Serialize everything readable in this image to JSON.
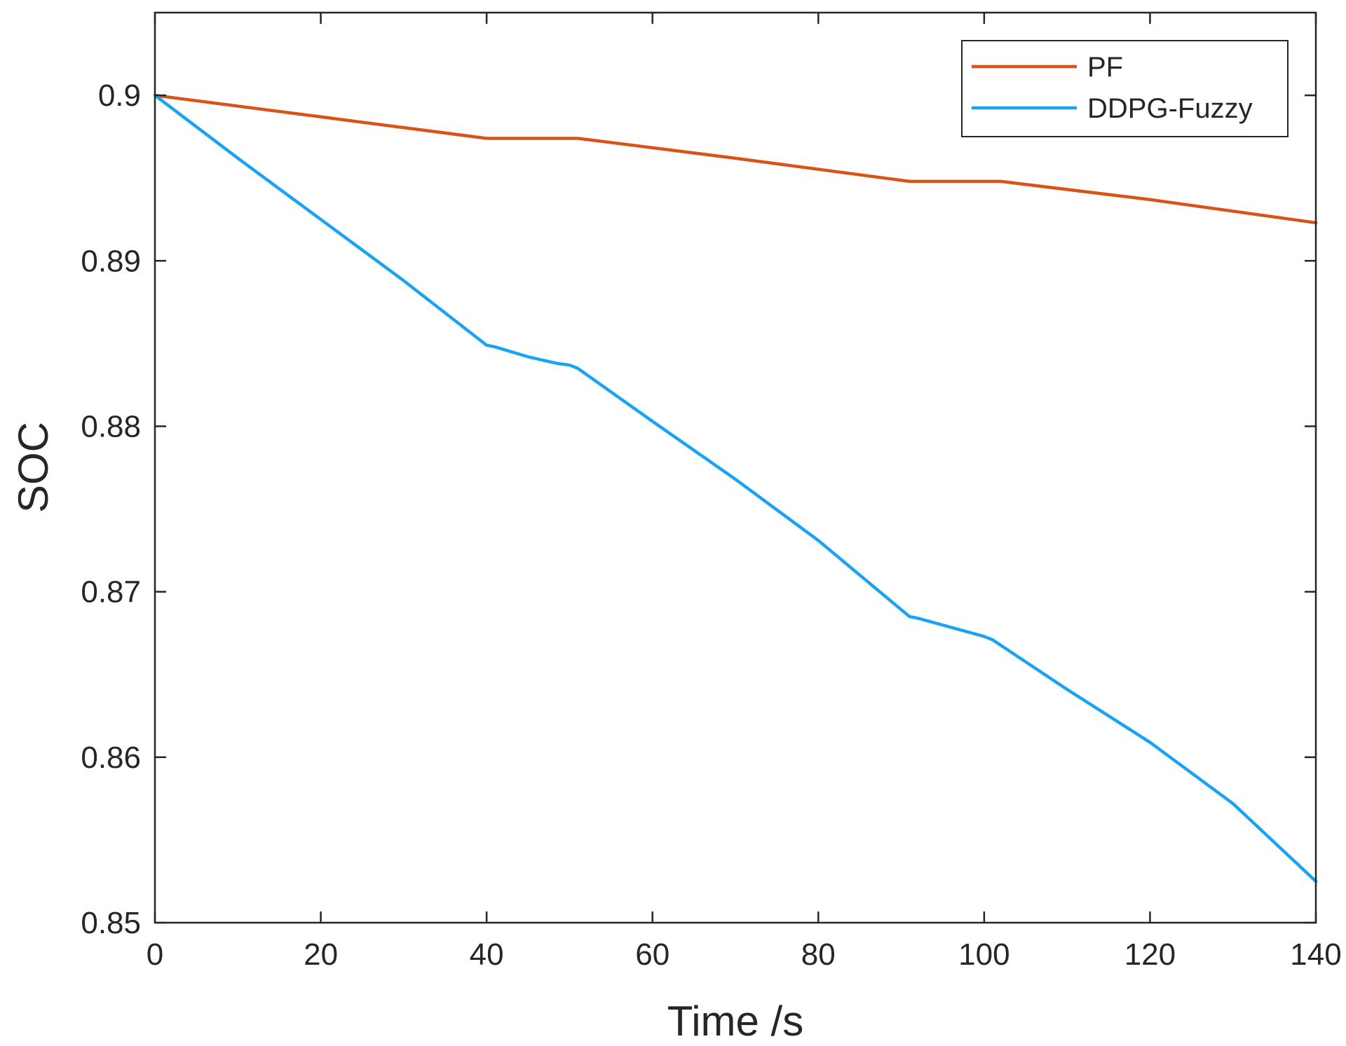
{
  "chart_data": {
    "type": "line",
    "title": "",
    "xlabel": "Time /s",
    "ylabel": "SOC",
    "xlim": [
      0,
      140
    ],
    "ylim": [
      0.85,
      0.905
    ],
    "xticks": [
      0,
      20,
      40,
      60,
      80,
      100,
      120,
      140
    ],
    "xtick_labels": [
      "0",
      "20",
      "40",
      "60",
      "80",
      "100",
      "120",
      "140"
    ],
    "yticks": [
      0.85,
      0.86,
      0.87,
      0.88,
      0.89,
      0.9
    ],
    "ytick_labels": [
      "0.85",
      "0.86",
      "0.87",
      "0.88",
      "0.89",
      "0.9"
    ],
    "grid": false,
    "legend_position": "top-right",
    "series": [
      {
        "name": "PF",
        "color": "#D95319",
        "x": [
          0,
          20,
          40,
          51,
          70,
          91,
          102,
          120,
          140
        ],
        "y": [
          0.9,
          0.8987,
          0.8974,
          0.8974,
          0.8962,
          0.8948,
          0.8948,
          0.8937,
          0.8923
        ]
      },
      {
        "name": "DDPG-Fuzzy",
        "color": "#1AA3F5",
        "x": [
          0,
          10,
          20,
          30,
          40,
          41,
          45,
          48.5,
          50,
          51,
          60,
          70,
          80,
          91,
          92,
          100,
          101,
          110,
          120,
          130,
          140
        ],
        "y": [
          0.9,
          0.8962,
          0.8925,
          0.8888,
          0.8849,
          0.8848,
          0.8842,
          0.8838,
          0.8837,
          0.8835,
          0.8803,
          0.8768,
          0.8731,
          0.8685,
          0.8684,
          0.8673,
          0.8671,
          0.8641,
          0.8609,
          0.8572,
          0.8525
        ]
      }
    ]
  }
}
